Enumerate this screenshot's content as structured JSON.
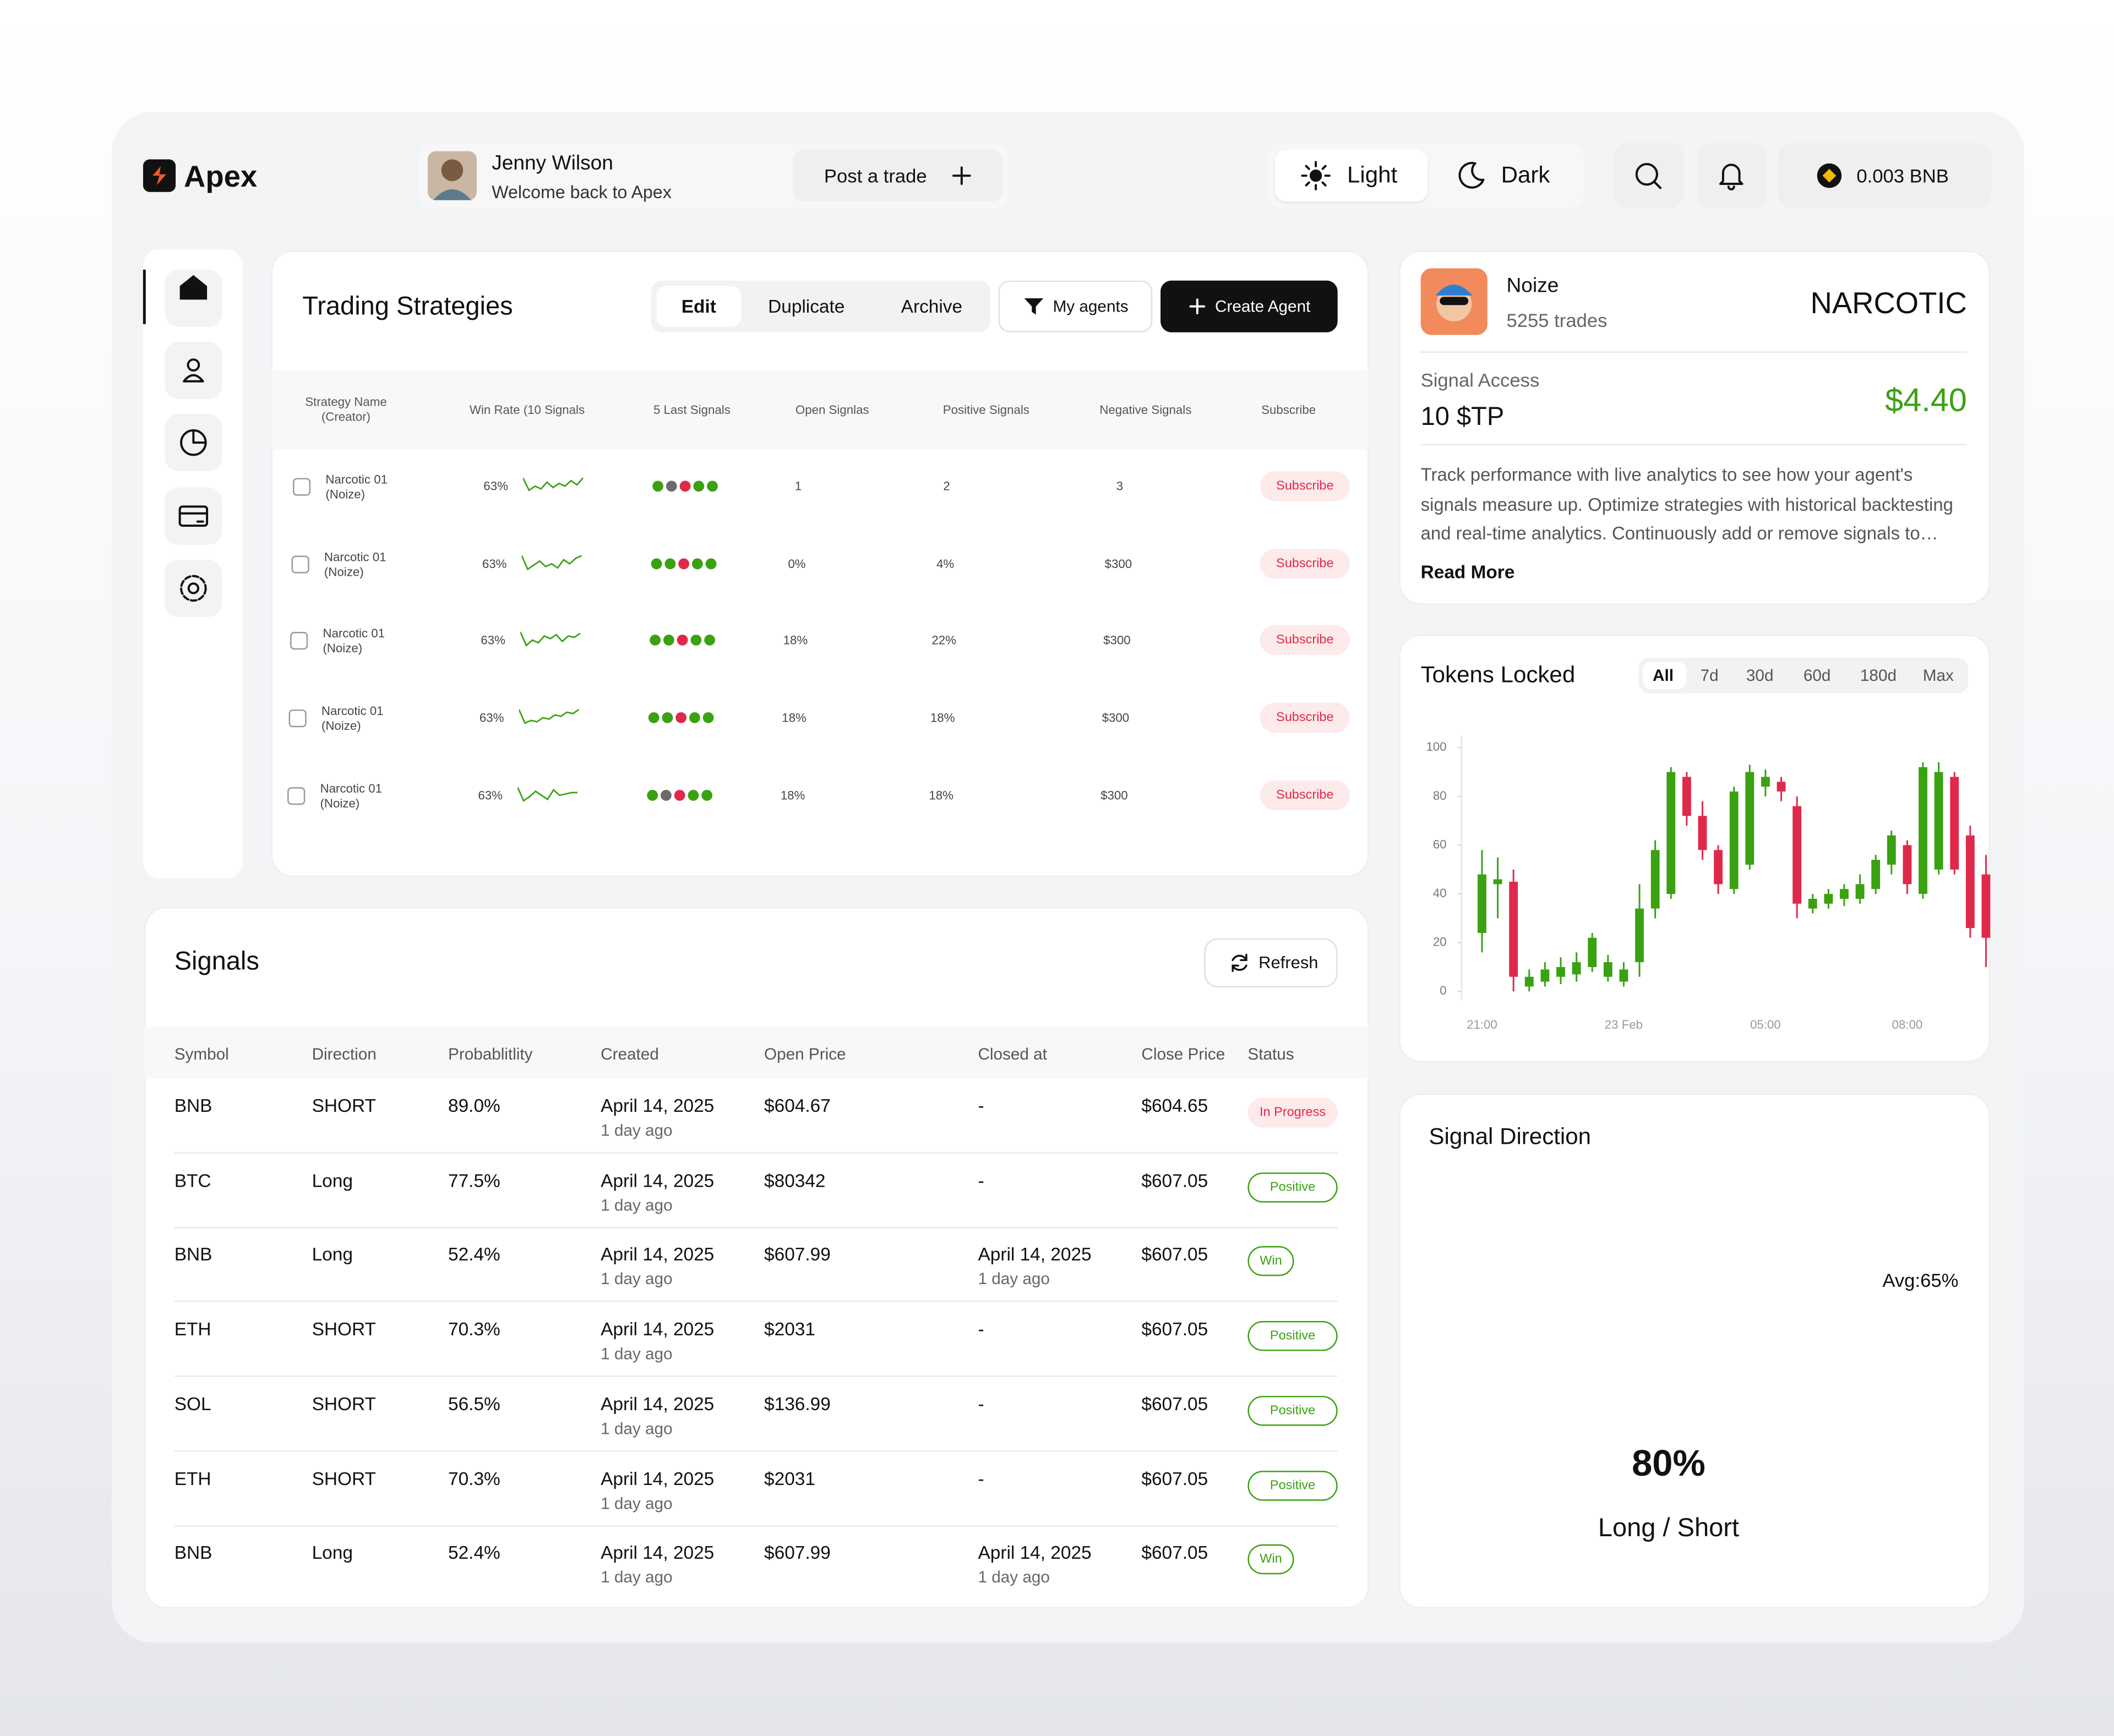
{
  "header": {
    "brand": "Apex",
    "user_name": "Jenny Wilson",
    "welcome": "Welcome back to Apex",
    "post_trade": "Post a trade",
    "theme_light": "Light",
    "theme_dark": "Dark",
    "wallet": "0.003 BNB"
  },
  "strategies": {
    "title": "Trading Strategies",
    "tabs": [
      "Edit",
      "Duplicate",
      "Archive"
    ],
    "my_agents": "My agents",
    "create_agent": "Create Agent",
    "columns": [
      "Strategy Name (Creator)",
      "Win Rate (10 Signals",
      "5 Last Signals",
      "Open Signlas",
      "Positive Signals",
      "Negative Signals",
      "Subscribe"
    ],
    "rows": [
      {
        "name": "Narcotic 01",
        "creator": "(Noize)",
        "win_rate": "63%",
        "open": "1",
        "positive": "2",
        "negative": "3",
        "action": "Subscribe"
      },
      {
        "name": "Narcotic 01",
        "creator": "(Noize)",
        "win_rate": "63%",
        "open": "0%",
        "positive": "4%",
        "negative": "$300",
        "action": "Subscribe"
      },
      {
        "name": "Narcotic 01",
        "creator": "(Noize)",
        "win_rate": "63%",
        "open": "18%",
        "positive": "22%",
        "negative": "$300",
        "action": "Subscribe"
      },
      {
        "name": "Narcotic 01",
        "creator": "(Noize)",
        "win_rate": "63%",
        "open": "18%",
        "positive": "18%",
        "negative": "$300",
        "action": "Subscribe"
      },
      {
        "name": "Narcotic 01",
        "creator": "(Noize)",
        "win_rate": "63%",
        "open": "18%",
        "positive": "18%",
        "negative": "$300",
        "action": "Subscribe"
      }
    ]
  },
  "profile": {
    "name": "Noize",
    "trades": "5255 trades",
    "strategy": "NARCOTIC",
    "access_label": "Signal Access",
    "access_value": "10 $TP",
    "price": "$4.40",
    "description": "Track performance with live analytics to see how your agent's signals measure up. Optimize strategies with historical backtesting and real-time analytics. Continuously add or remove signals to refine your results.",
    "read_more": "Read More"
  },
  "chart_data": {
    "type": "candlestick",
    "title": "Tokens Locked",
    "ranges": [
      "All",
      "7d",
      "30d",
      "60d",
      "180d",
      "Max"
    ],
    "categories": [
      "21:00",
      null,
      null,
      null,
      null,
      null,
      null,
      null,
      null,
      "23 Feb",
      null,
      null,
      null,
      null,
      null,
      null,
      null,
      null,
      "05:00",
      null,
      null,
      null,
      null,
      null,
      null,
      null,
      null,
      "08:00",
      null,
      null,
      null,
      null,
      null
    ],
    "open": [
      24,
      44,
      45,
      2,
      4,
      6,
      7,
      10,
      6,
      4,
      12,
      34,
      40,
      88,
      72,
      58,
      42,
      52,
      84,
      86,
      76,
      34,
      36,
      38,
      38,
      42,
      52,
      60,
      40,
      50,
      88,
      64,
      48
    ],
    "close": [
      48,
      46,
      6,
      6,
      9,
      10,
      12,
      22,
      12,
      9,
      34,
      58,
      90,
      72,
      58,
      44,
      82,
      90,
      88,
      82,
      36,
      38,
      40,
      42,
      44,
      54,
      64,
      44,
      92,
      90,
      50,
      26,
      22
    ],
    "high": [
      58,
      55,
      50,
      9,
      12,
      14,
      16,
      24,
      15,
      12,
      44,
      62,
      92,
      90,
      78,
      60,
      84,
      93,
      91,
      88,
      80,
      40,
      42,
      44,
      48,
      56,
      66,
      62,
      94,
      94,
      90,
      68,
      56
    ],
    "low": [
      16,
      30,
      0,
      0,
      2,
      3,
      4,
      8,
      4,
      2,
      6,
      30,
      38,
      68,
      54,
      40,
      40,
      50,
      80,
      78,
      30,
      32,
      34,
      35,
      36,
      40,
      48,
      40,
      38,
      48,
      48,
      22,
      10
    ],
    "up_color": "#3aa111",
    "down_color": "#e0294a",
    "ylim": [
      0,
      100
    ],
    "yticks": [
      0,
      20,
      40,
      60,
      80,
      100
    ]
  },
  "signals": {
    "title": "Signals",
    "refresh": "Refresh",
    "columns": [
      "Symbol",
      "Direction",
      "Probablitlity",
      "Created",
      "Open Price",
      "Closed at",
      "Close Price",
      "Status"
    ],
    "rows": [
      {
        "symbol": "BNB",
        "direction": "SHORT",
        "probability": "89.0%",
        "created": "April 14, 2025",
        "created_ago": "1 day ago",
        "open_price": "$604.67",
        "closed_at": "-",
        "close_price": "$604.65",
        "status": "In Progress",
        "status_color": "#e0294a"
      },
      {
        "symbol": "BTC",
        "direction": "Long",
        "probability": "77.5%",
        "created": "April 14, 2025",
        "created_ago": "1 day ago",
        "open_price": "$80342",
        "closed_at": "-",
        "close_price": "$607.05",
        "status": "Positive",
        "status_color": "#3aa111"
      },
      {
        "symbol": "BNB",
        "direction": "Long",
        "probability": "52.4%",
        "created": "April 14, 2025",
        "created_ago": "1 day ago",
        "open_price": "$607.99",
        "closed_at": "April 14, 2025",
        "closed_ago": "1 day ago",
        "close_price": "$607.05",
        "status": "Win",
        "status_color": "#3aa111"
      },
      {
        "symbol": "ETH",
        "direction": "SHORT",
        "probability": "70.3%",
        "created": "April 14, 2025",
        "created_ago": "1 day ago",
        "open_price": "$2031",
        "closed_at": "-",
        "close_price": "$607.05",
        "status": "Positive",
        "status_color": "#3aa111"
      },
      {
        "symbol": "SOL",
        "direction": "SHORT",
        "probability": "56.5%",
        "created": "April 14, 2025",
        "created_ago": "1 day ago",
        "open_price": "$136.99",
        "closed_at": "-",
        "close_price": "$607.05",
        "status": "Positive",
        "status_color": "#3aa111"
      },
      {
        "symbol": "ETH",
        "direction": "SHORT",
        "probability": "70.3%",
        "created": "April 14, 2025",
        "created_ago": "1 day ago",
        "open_price": "$2031",
        "closed_at": "-",
        "close_price": "$607.05",
        "status": "Positive",
        "status_color": "#3aa111"
      },
      {
        "symbol": "BNB",
        "direction": "Long",
        "probability": "52.4%",
        "created": "April 14, 2025",
        "created_ago": "1 day ago",
        "open_price": "$607.99",
        "closed_at": "April 14, 2025",
        "closed_ago": "1 day ago",
        "close_price": "$607.05",
        "status": "Win",
        "status_color": "#3aa111"
      }
    ]
  },
  "signal_direction": {
    "title": "Signal Direction",
    "value": 80,
    "value_label": "80%",
    "avg_label": "Avg:65%",
    "caption": "Long / Short"
  }
}
